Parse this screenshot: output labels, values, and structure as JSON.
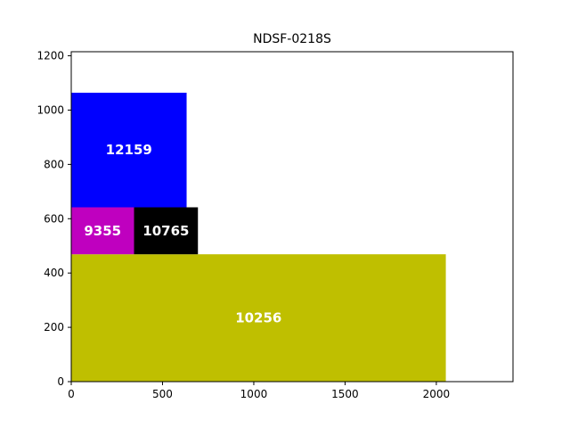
{
  "chart_data": {
    "type": "rectangles",
    "title": "NDSF-0218S",
    "xlabel": "",
    "ylabel": "",
    "xlim": [
      0,
      2420
    ],
    "ylim": [
      0,
      1215
    ],
    "x_ticks": [
      0,
      500,
      1000,
      1500,
      2000
    ],
    "y_ticks": [
      0,
      200,
      400,
      600,
      800,
      1000,
      1200
    ],
    "grid": false,
    "legend": "none",
    "rects": [
      {
        "label": "10256",
        "x": 0,
        "y": 0,
        "width": 2052,
        "height": 469,
        "color": "#bfbf00"
      },
      {
        "label": "9355",
        "x": 0,
        "y": 469,
        "width": 344,
        "height": 173,
        "color": "#bf00bf"
      },
      {
        "label": "10765",
        "x": 344,
        "y": 469,
        "width": 350,
        "height": 173,
        "color": "#000000"
      },
      {
        "label": "12159",
        "x": 0,
        "y": 642,
        "width": 632,
        "height": 422,
        "color": "#0000ff"
      }
    ]
  }
}
